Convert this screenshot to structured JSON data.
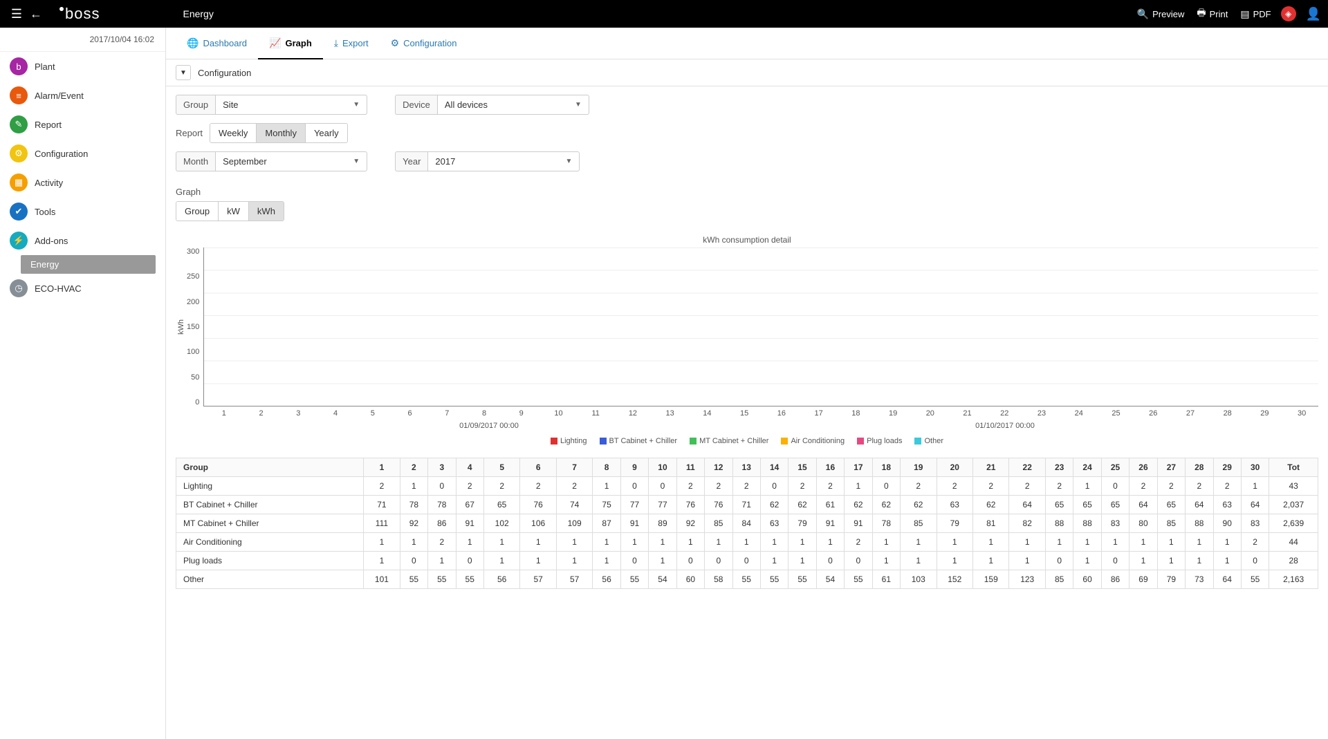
{
  "topbar": {
    "logo": "boss",
    "module": "Energy",
    "preview": "Preview",
    "print": "Print",
    "pdf": "PDF"
  },
  "datetime": "2017/10/04    16:02",
  "sidebar": {
    "items": [
      {
        "label": "Plant",
        "color": "#a626a4",
        "icon": "b"
      },
      {
        "label": "Alarm/Event",
        "color": "#e8590c",
        "icon": "≡"
      },
      {
        "label": "Report",
        "color": "#2f9e44",
        "icon": "✎"
      },
      {
        "label": "Configuration",
        "color": "#f1c40f",
        "icon": "⚙"
      },
      {
        "label": "Activity",
        "color": "#f59f00",
        "icon": "▦"
      },
      {
        "label": "Tools",
        "color": "#1971c2",
        "icon": "✔"
      },
      {
        "label": "Add-ons",
        "color": "#15aabf",
        "icon": "⚡",
        "subs": [
          {
            "label": "Energy",
            "active": true
          }
        ]
      },
      {
        "label": "ECO-HVAC",
        "color": "#868e96",
        "icon": "◷"
      }
    ]
  },
  "tabs": [
    {
      "label": "Dashboard",
      "icon": "🌐",
      "active": false
    },
    {
      "label": "Graph",
      "icon": "📈",
      "active": true
    },
    {
      "label": "Export",
      "icon": "⤓",
      "active": false
    },
    {
      "label": "Configuration",
      "icon": "⚙",
      "active": false
    }
  ],
  "sectionBar": "Configuration",
  "filters": {
    "group_label": "Group",
    "group_value": "Site",
    "device_label": "Device",
    "device_value": "All devices",
    "report_label": "Report",
    "report_options": [
      "Weekly",
      "Monthly",
      "Yearly"
    ],
    "report_active": 1,
    "month_label": "Month",
    "month_value": "September",
    "year_label": "Year",
    "year_value": "2017"
  },
  "graphSection": {
    "title": "Graph",
    "mode_options": [
      "Group",
      "kW",
      "kWh"
    ],
    "mode_active": 2
  },
  "chart": {
    "title": "kWh consumption detail",
    "type": "stacked-bar",
    "ylabel": "kWh",
    "ymax": 300,
    "ytick_step": 50,
    "xdates": [
      "01/09/2017 00:00",
      "01/10/2017 00:00"
    ],
    "grid_color": "#eeeeee",
    "axis_color": "#888888",
    "background": "#ffffff",
    "series": [
      {
        "name": "Lighting",
        "color": "#e03131"
      },
      {
        "name": "BT Cabinet + Chiller",
        "color": "#3b5bdb"
      },
      {
        "name": "MT Cabinet + Chiller",
        "color": "#40c057"
      },
      {
        "name": "Air Conditioning",
        "color": "#fab005"
      },
      {
        "name": "Plug loads",
        "color": "#e64980"
      },
      {
        "name": "Other",
        "color": "#3bc9db"
      }
    ],
    "days": [
      "1",
      "2",
      "3",
      "4",
      "5",
      "6",
      "7",
      "8",
      "9",
      "10",
      "11",
      "12",
      "13",
      "14",
      "15",
      "16",
      "17",
      "18",
      "19",
      "20",
      "21",
      "22",
      "23",
      "24",
      "25",
      "26",
      "27",
      "28",
      "29",
      "30"
    ]
  },
  "table": {
    "header_first": "Group",
    "header_last": "Tot",
    "days": [
      "1",
      "2",
      "3",
      "4",
      "5",
      "6",
      "7",
      "8",
      "9",
      "10",
      "11",
      "12",
      "13",
      "14",
      "15",
      "16",
      "17",
      "18",
      "19",
      "20",
      "21",
      "22",
      "23",
      "24",
      "25",
      "26",
      "27",
      "28",
      "29",
      "30"
    ],
    "rows": [
      {
        "name": "Lighting",
        "vals": [
          2,
          1,
          0,
          2,
          2,
          2,
          2,
          1,
          0,
          0,
          2,
          2,
          2,
          0,
          2,
          2,
          1,
          0,
          2,
          2,
          2,
          2,
          2,
          1,
          0,
          2,
          2,
          2,
          2,
          1
        ],
        "tot": "43"
      },
      {
        "name": "BT Cabinet + Chiller",
        "vals": [
          71,
          78,
          78,
          67,
          65,
          76,
          74,
          75,
          77,
          77,
          76,
          76,
          71,
          62,
          62,
          61,
          62,
          62,
          62,
          63,
          62,
          64,
          65,
          65,
          65,
          64,
          65,
          64,
          63,
          64
        ],
        "tot": "2,037"
      },
      {
        "name": "MT Cabinet + Chiller",
        "vals": [
          111,
          92,
          86,
          91,
          102,
          106,
          109,
          87,
          91,
          89,
          92,
          85,
          84,
          63,
          79,
          91,
          91,
          78,
          85,
          79,
          81,
          82,
          88,
          88,
          83,
          80,
          85,
          88,
          90,
          83
        ],
        "tot": "2,639"
      },
      {
        "name": "Air Conditioning",
        "vals": [
          1,
          1,
          2,
          1,
          1,
          1,
          1,
          1,
          1,
          1,
          1,
          1,
          1,
          1,
          1,
          1,
          2,
          1,
          1,
          1,
          1,
          1,
          1,
          1,
          1,
          1,
          1,
          1,
          1,
          2
        ],
        "tot": "44"
      },
      {
        "name": "Plug loads",
        "vals": [
          1,
          0,
          1,
          0,
          1,
          1,
          1,
          1,
          0,
          1,
          0,
          0,
          0,
          1,
          1,
          0,
          0,
          1,
          1,
          1,
          1,
          1,
          0,
          1,
          0,
          1,
          1,
          1,
          1,
          0
        ],
        "tot": "28"
      },
      {
        "name": "Other",
        "vals": [
          101,
          55,
          55,
          55,
          56,
          57,
          57,
          56,
          55,
          54,
          60,
          58,
          55,
          55,
          55,
          54,
          55,
          61,
          103,
          152,
          159,
          123,
          85,
          60,
          86,
          69,
          79,
          73,
          64,
          55
        ],
        "tot": "2,163"
      }
    ]
  }
}
